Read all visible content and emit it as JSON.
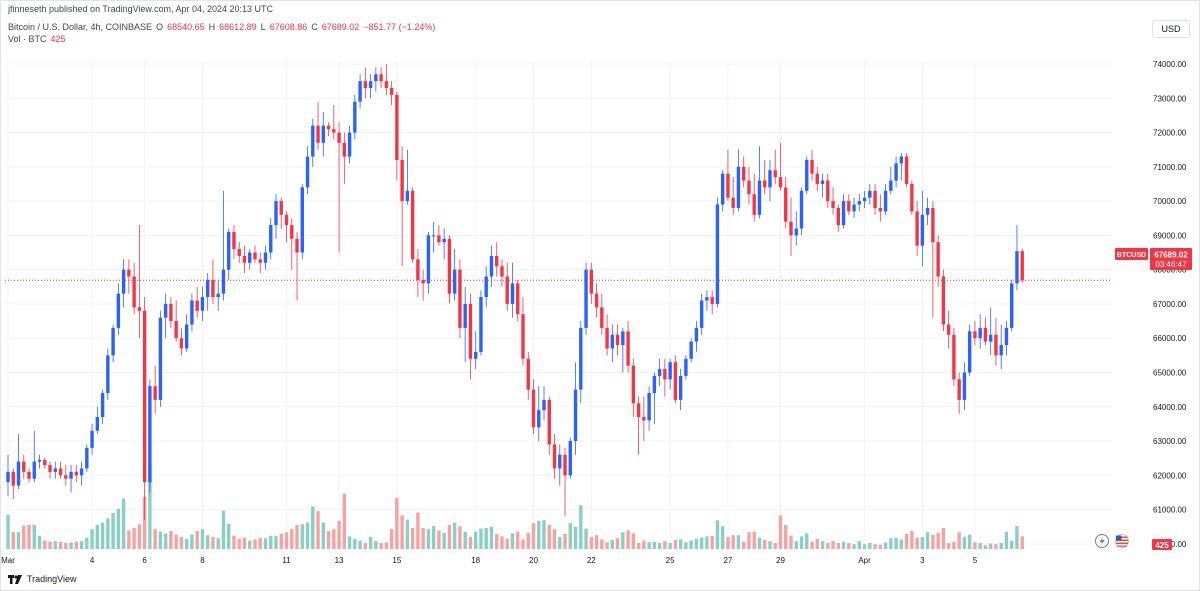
{
  "header": {
    "published": "jfinneseth published on TradingView.com, Apr 04, 2024 20:13 UTC",
    "symbol": "Bitcoin / U.S. Dollar, 4h, COINBASE",
    "ohlc": {
      "o_label": "O",
      "o": "68540.65",
      "h_label": "H",
      "h": "68612.89",
      "l_label": "L",
      "l": "67608.86",
      "c_label": "C",
      "c": "67689.02",
      "change": "−851.77 (−1.24%)"
    },
    "vol_label": "Vol · BTC",
    "vol_value": "425"
  },
  "currency": "USD",
  "price_tag": {
    "symbol": "BTCUSD",
    "price": "67689.02",
    "countdown": "03:46:47"
  },
  "volume_tag": "425",
  "footer": {
    "brand": "TradingView"
  },
  "colors": {
    "up": "#2962ff",
    "down": "#f23645",
    "vol_up": "#89cfc4",
    "vol_down": "#f4a3a0",
    "grid": "#f0f3fa",
    "axis_text": "#131722"
  },
  "icons": [
    "flash-icon",
    "us-flag-icon",
    "tradingview-logo-icon"
  ],
  "chart_data": {
    "type": "candlestick",
    "title": "Bitcoin / U.S. Dollar, 4h, COINBASE",
    "timeframe": "4h",
    "y_ticks": [
      "60000.00",
      "61000.00",
      "62000.00",
      "63000.00",
      "64000.00",
      "65000.00",
      "66000.00",
      "67000.00",
      "68000.00",
      "69000.00",
      "70000.00",
      "71000.00",
      "72000.00",
      "73000.00",
      "74000.00"
    ],
    "ylim": [
      59500,
      74700
    ],
    "x_labels": [
      {
        "i": 0,
        "label": "Mar"
      },
      {
        "i": 16,
        "label": "4"
      },
      {
        "i": 26,
        "label": "6"
      },
      {
        "i": 37,
        "label": "8"
      },
      {
        "i": 53,
        "label": "11"
      },
      {
        "i": 63,
        "label": "13"
      },
      {
        "i": 74,
        "label": "15"
      },
      {
        "i": 89,
        "label": "18"
      },
      {
        "i": 100,
        "label": "20"
      },
      {
        "i": 111,
        "label": "22"
      },
      {
        "i": 126,
        "label": "25"
      },
      {
        "i": 137,
        "label": "27"
      },
      {
        "i": 147,
        "label": "29"
      },
      {
        "i": 163,
        "label": "Apr"
      },
      {
        "i": 174,
        "label": "3"
      },
      {
        "i": 184,
        "label": "5"
      }
    ],
    "last_price": 67689.02,
    "candles": [
      [
        61800,
        62600,
        61400,
        62100,
        57
      ],
      [
        62100,
        62200,
        61300,
        61700,
        28
      ],
      [
        61700,
        63200,
        61600,
        62400,
        28
      ],
      [
        62400,
        62600,
        61900,
        62100,
        39
      ],
      [
        62100,
        62200,
        61800,
        61900,
        40
      ],
      [
        61900,
        63300,
        61800,
        62400,
        40
      ],
      [
        62400,
        62600,
        62200,
        62450,
        22
      ],
      [
        62450,
        62500,
        62200,
        62300,
        14
      ],
      [
        62300,
        62400,
        61900,
        62100,
        12
      ],
      [
        62100,
        62400,
        61900,
        62200,
        13
      ],
      [
        62200,
        62400,
        61900,
        62000,
        12
      ],
      [
        62000,
        62300,
        61700,
        61900,
        10
      ],
      [
        61900,
        62300,
        61500,
        62100,
        11
      ],
      [
        62100,
        62300,
        61800,
        62000,
        12
      ],
      [
        62000,
        62400,
        61700,
        62200,
        13
      ],
      [
        62200,
        62900,
        62100,
        62800,
        19
      ],
      [
        62800,
        63500,
        62600,
        63300,
        33
      ],
      [
        63300,
        64000,
        63200,
        63700,
        40
      ],
      [
        63700,
        64500,
        63500,
        64400,
        44
      ],
      [
        64400,
        65700,
        64200,
        65500,
        51
      ],
      [
        65500,
        66400,
        65300,
        66300,
        60
      ],
      [
        66300,
        67600,
        66100,
        67300,
        67
      ],
      [
        67300,
        68300,
        66900,
        68000,
        84
      ],
      [
        68000,
        68300,
        67300,
        67800,
        31
      ],
      [
        67800,
        68200,
        66700,
        66900,
        35
      ],
      [
        66900,
        69300,
        66000,
        66800,
        41
      ],
      [
        66800,
        67200,
        60700,
        61800,
        87
      ],
      [
        61800,
        64800,
        61500,
        64600,
        140
      ],
      [
        64600,
        65200,
        63800,
        64200,
        33
      ],
      [
        64200,
        66800,
        64000,
        66600,
        29
      ],
      [
        66600,
        67300,
        66000,
        67000,
        26
      ],
      [
        67000,
        67200,
        66300,
        66500,
        30
      ],
      [
        66500,
        67100,
        65900,
        66000,
        24
      ],
      [
        66000,
        66300,
        65500,
        65700,
        20
      ],
      [
        65700,
        66700,
        65600,
        66400,
        17
      ],
      [
        66400,
        67300,
        66200,
        67100,
        24
      ],
      [
        67100,
        67500,
        66600,
        66800,
        30
      ],
      [
        66800,
        67500,
        66500,
        67200,
        33
      ],
      [
        67200,
        67900,
        66800,
        67700,
        23
      ],
      [
        67700,
        68300,
        67000,
        67200,
        20
      ],
      [
        67200,
        67700,
        66800,
        67300,
        18
      ],
      [
        67300,
        70300,
        67100,
        68000,
        64
      ],
      [
        68000,
        69200,
        67700,
        69100,
        42
      ],
      [
        69100,
        69300,
        68300,
        68600,
        22
      ],
      [
        68600,
        68800,
        68200,
        68400,
        17
      ],
      [
        68400,
        68700,
        67900,
        68200,
        19
      ],
      [
        68200,
        68600,
        68000,
        68500,
        14
      ],
      [
        68500,
        68700,
        68200,
        68300,
        16
      ],
      [
        68300,
        68500,
        67900,
        68200,
        18
      ],
      [
        68200,
        68700,
        68000,
        68500,
        18
      ],
      [
        68500,
        69500,
        68300,
        69300,
        22
      ],
      [
        69300,
        70200,
        68900,
        70000,
        22
      ],
      [
        70000,
        70100,
        69200,
        69600,
        25
      ],
      [
        69600,
        69700,
        68800,
        69300,
        28
      ],
      [
        69300,
        69500,
        68000,
        68900,
        33
      ],
      [
        68900,
        69100,
        67100,
        68500,
        40
      ],
      [
        68500,
        70500,
        68300,
        70400,
        41
      ],
      [
        70400,
        71600,
        70200,
        71300,
        44
      ],
      [
        71300,
        72400,
        71000,
        72200,
        71
      ],
      [
        72200,
        72900,
        71500,
        71700,
        63
      ],
      [
        71700,
        72600,
        71300,
        72200,
        44
      ],
      [
        72200,
        72300,
        71900,
        72100,
        30
      ],
      [
        72100,
        72800,
        71800,
        72000,
        33
      ],
      [
        72000,
        72300,
        68500,
        71700,
        47
      ],
      [
        71700,
        72000,
        70500,
        71300,
        92
      ],
      [
        71300,
        72200,
        71100,
        72000,
        21
      ],
      [
        72000,
        73100,
        71800,
        72900,
        17
      ],
      [
        72900,
        73700,
        72700,
        73500,
        14
      ],
      [
        73500,
        73900,
        73000,
        73300,
        10
      ],
      [
        73300,
        73700,
        73000,
        73500,
        20
      ],
      [
        73500,
        73900,
        73200,
        73700,
        13
      ],
      [
        73700,
        73900,
        73300,
        73500,
        10
      ],
      [
        73500,
        74000,
        73100,
        73300,
        11
      ],
      [
        73300,
        73500,
        72800,
        73100,
        33
      ],
      [
        73100,
        73200,
        70600,
        71200,
        85
      ],
      [
        71200,
        71600,
        68100,
        70000,
        56
      ],
      [
        70000,
        71500,
        69900,
        70300,
        49
      ],
      [
        70300,
        70400,
        68200,
        68300,
        35
      ],
      [
        68300,
        68600,
        67200,
        67700,
        61
      ],
      [
        67700,
        68000,
        67100,
        67600,
        35
      ],
      [
        67600,
        69100,
        67300,
        69000,
        33
      ],
      [
        69000,
        69400,
        68500,
        69000,
        38
      ],
      [
        69000,
        69300,
        68700,
        68800,
        31
      ],
      [
        68800,
        69200,
        68300,
        68900,
        27
      ],
      [
        68900,
        69000,
        67000,
        67300,
        40
      ],
      [
        67300,
        68600,
        67100,
        68000,
        44
      ],
      [
        68000,
        68300,
        66000,
        66300,
        38
      ],
      [
        66300,
        67500,
        65300,
        67000,
        29
      ],
      [
        67000,
        67300,
        64800,
        65400,
        20
      ],
      [
        65400,
        66200,
        65100,
        65600,
        29
      ],
      [
        65600,
        67400,
        65500,
        67200,
        34
      ],
      [
        67200,
        68100,
        66900,
        67800,
        35
      ],
      [
        67800,
        68700,
        67500,
        68400,
        37
      ],
      [
        68400,
        68800,
        67800,
        68100,
        25
      ],
      [
        68100,
        68300,
        67500,
        67800,
        21
      ],
      [
        67800,
        68200,
        66800,
        67000,
        17
      ],
      [
        67000,
        68200,
        66600,
        67600,
        26
      ],
      [
        67600,
        67700,
        66500,
        66700,
        29
      ],
      [
        66700,
        67200,
        65200,
        65400,
        16
      ],
      [
        65400,
        65600,
        64200,
        64500,
        27
      ],
      [
        64500,
        64800,
        63200,
        63400,
        43
      ],
      [
        63400,
        64600,
        63000,
        63900,
        47
      ],
      [
        63900,
        64600,
        63600,
        64200,
        48
      ],
      [
        64200,
        64300,
        62600,
        62900,
        40
      ],
      [
        62900,
        63200,
        61900,
        62200,
        33
      ],
      [
        62200,
        62900,
        61700,
        62600,
        20
      ],
      [
        62600,
        62800,
        60800,
        62000,
        25
      ],
      [
        62000,
        63100,
        61900,
        63000,
        43
      ],
      [
        63000,
        65300,
        62600,
        64500,
        37
      ],
      [
        64500,
        66500,
        64100,
        66300,
        73
      ],
      [
        66300,
        68200,
        66100,
        68000,
        34
      ],
      [
        68000,
        68200,
        67000,
        67300,
        20
      ],
      [
        67300,
        67600,
        66600,
        66900,
        23
      ],
      [
        66900,
        67300,
        66100,
        66300,
        16
      ],
      [
        66300,
        66700,
        65500,
        65700,
        11
      ],
      [
        65700,
        66400,
        65300,
        66100,
        15
      ],
      [
        66100,
        66400,
        65500,
        65800,
        18
      ],
      [
        65800,
        66300,
        65000,
        66200,
        28
      ],
      [
        66200,
        66500,
        65000,
        65200,
        31
      ],
      [
        65200,
        65400,
        63700,
        64100,
        26
      ],
      [
        64100,
        64300,
        62600,
        63700,
        10
      ],
      [
        63700,
        64300,
        63000,
        63600,
        14
      ],
      [
        63600,
        64600,
        63300,
        64400,
        11
      ],
      [
        64400,
        65000,
        63500,
        64900,
        12
      ],
      [
        64900,
        65400,
        64600,
        65100,
        10
      ],
      [
        65100,
        65400,
        64300,
        64800,
        13
      ],
      [
        64800,
        65400,
        64500,
        65300,
        10
      ],
      [
        65300,
        65500,
        64100,
        64200,
        15
      ],
      [
        64200,
        65100,
        63900,
        64900,
        16
      ],
      [
        64900,
        65500,
        64800,
        65400,
        11
      ],
      [
        65400,
        66000,
        65300,
        65900,
        14
      ],
      [
        65900,
        66500,
        65600,
        66300,
        17
      ],
      [
        66300,
        67300,
        66100,
        67100,
        19
      ],
      [
        67100,
        67400,
        66800,
        67200,
        21
      ],
      [
        67200,
        67400,
        66700,
        67000,
        22
      ],
      [
        67000,
        70100,
        66900,
        69900,
        48
      ],
      [
        69900,
        70900,
        69700,
        70800,
        38
      ],
      [
        70800,
        71500,
        70000,
        70100,
        20
      ],
      [
        70100,
        70700,
        69600,
        69800,
        23
      ],
      [
        69800,
        71500,
        69700,
        71000,
        23
      ],
      [
        71000,
        71300,
        70400,
        70600,
        12
      ],
      [
        70600,
        71000,
        69900,
        70200,
        28
      ],
      [
        70200,
        70800,
        69400,
        69600,
        29
      ],
      [
        69600,
        71600,
        69500,
        70600,
        19
      ],
      [
        70600,
        71200,
        70200,
        70400,
        15
      ],
      [
        70400,
        71200,
        70000,
        70900,
        13
      ],
      [
        70900,
        71500,
        70500,
        70700,
        10
      ],
      [
        70700,
        71700,
        70300,
        70400,
        56
      ],
      [
        70400,
        70700,
        69200,
        69400,
        40
      ],
      [
        69400,
        70100,
        68400,
        69000,
        22
      ],
      [
        69000,
        69700,
        68700,
        69200,
        13
      ],
      [
        69200,
        70400,
        69000,
        70300,
        21
      ],
      [
        70300,
        71300,
        70200,
        71200,
        26
      ],
      [
        71200,
        71500,
        70600,
        70800,
        12
      ],
      [
        70800,
        71000,
        70300,
        70500,
        17
      ],
      [
        70500,
        70800,
        70100,
        70600,
        13
      ],
      [
        70600,
        70800,
        69800,
        70000,
        10
      ],
      [
        70000,
        70400,
        69600,
        69800,
        13
      ],
      [
        69800,
        69900,
        69100,
        69300,
        10
      ],
      [
        69300,
        70200,
        69200,
        70000,
        12
      ],
      [
        70000,
        70200,
        69600,
        69700,
        10
      ],
      [
        69700,
        70100,
        69500,
        69900,
        8
      ],
      [
        69900,
        70200,
        69700,
        70000,
        13
      ],
      [
        70000,
        70300,
        69800,
        70100,
        8
      ],
      [
        70100,
        70500,
        69900,
        70300,
        10
      ],
      [
        70300,
        70500,
        69600,
        69800,
        8
      ],
      [
        69800,
        70200,
        69400,
        69700,
        7
      ],
      [
        69700,
        70500,
        69600,
        70300,
        11
      ],
      [
        70300,
        71000,
        70200,
        70600,
        18
      ],
      [
        70600,
        71300,
        70400,
        71100,
        19
      ],
      [
        71100,
        71400,
        70600,
        71300,
        16
      ],
      [
        71300,
        71400,
        70400,
        70500,
        25
      ],
      [
        70500,
        70600,
        69600,
        69700,
        30
      ],
      [
        69700,
        70000,
        68400,
        68700,
        19
      ],
      [
        68700,
        70300,
        68100,
        69600,
        20
      ],
      [
        69600,
        70100,
        69300,
        69800,
        28
      ],
      [
        69800,
        70000,
        66600,
        68800,
        24
      ],
      [
        68800,
        69000,
        67500,
        67800,
        27
      ],
      [
        67800,
        68000,
        66200,
        66400,
        35
      ],
      [
        66400,
        66800,
        65700,
        66100,
        10
      ],
      [
        66100,
        66300,
        64600,
        64800,
        12
      ],
      [
        64800,
        65000,
        63800,
        64200,
        28
      ],
      [
        64200,
        65300,
        63900,
        65000,
        20
      ],
      [
        65000,
        66400,
        64900,
        66200,
        24
      ],
      [
        66200,
        66500,
        65800,
        66000,
        11
      ],
      [
        66000,
        66700,
        65700,
        66300,
        10
      ],
      [
        66300,
        66600,
        65800,
        65900,
        6
      ],
      [
        65900,
        66900,
        65500,
        66100,
        9
      ],
      [
        66100,
        66600,
        65200,
        65500,
        8
      ],
      [
        65500,
        66400,
        65100,
        65800,
        10
      ],
      [
        65800,
        66500,
        65500,
        66300,
        29
      ],
      [
        66300,
        67700,
        66200,
        67600,
        14
      ],
      [
        67600,
        69300,
        67400,
        68540,
        38
      ],
      [
        68540.65,
        68612.89,
        67608.86,
        67689.02,
        21
      ]
    ]
  }
}
